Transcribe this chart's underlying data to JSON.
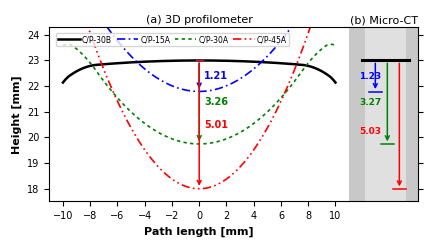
{
  "title_left": "(a) 3D profilometer",
  "title_right": "(b) Micro-CT",
  "xlabel": "Path length [mm]",
  "ylabel": "Height [mm]",
  "xlim": [
    -11,
    11
  ],
  "ylim": [
    17.5,
    24.3
  ],
  "yticks": [
    18,
    19,
    20,
    21,
    22,
    23,
    24
  ],
  "xticks": [
    -10,
    -8,
    -6,
    -4,
    -2,
    0,
    2,
    4,
    6,
    8,
    10
  ],
  "legend_labels": [
    "C/P-30B",
    "C/P-15A",
    "C/P-30A",
    "C/P-45A"
  ],
  "arrow_left": {
    "blue": {
      "x": 0.0,
      "y_top": 23.0,
      "y_bot": 21.79,
      "label": "1.21"
    },
    "green": {
      "x": 0.0,
      "y_top": 23.0,
      "y_bot": 19.74,
      "label": "3.26"
    },
    "red": {
      "x": 0.0,
      "y_top": 23.0,
      "y_bot": 17.99,
      "label": "5.01"
    }
  },
  "arrow_right": {
    "black_bar_y": 23.0,
    "blue": {
      "y_top": 23.0,
      "y_bot": 21.77,
      "label": "1.23"
    },
    "green": {
      "y_top": 23.0,
      "y_bot": 19.73,
      "label": "3.27"
    },
    "red": {
      "y_top": 23.0,
      "y_bot": 17.97,
      "label": "5.03"
    }
  },
  "background_color": "#ffffff",
  "right_panel_bg": "#c8c8c8",
  "right_panel_inner_bg": "#e0e0e0"
}
